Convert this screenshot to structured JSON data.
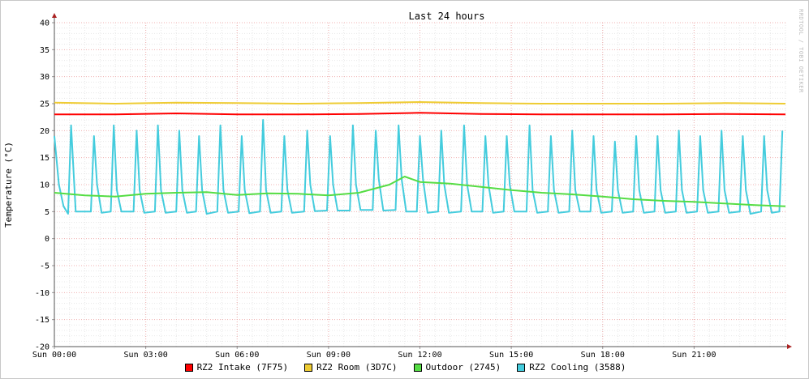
{
  "chart_data": {
    "type": "line",
    "title": "Last 24 hours",
    "xlabel": "",
    "ylabel": "Temperature (°C)",
    "watermark": "RRDTOOL / TOBI OETIKER",
    "ylim": [
      -20,
      40
    ],
    "yticks": [
      40,
      35,
      30,
      25,
      20,
      15,
      10,
      5,
      0,
      -5,
      -10,
      -15,
      -20
    ],
    "xlim_hours": [
      0,
      24
    ],
    "xticks": [
      {
        "hour": 0,
        "label": "Sun 00:00"
      },
      {
        "hour": 3,
        "label": "Sun 03:00"
      },
      {
        "hour": 6,
        "label": "Sun 06:00"
      },
      {
        "hour": 9,
        "label": "Sun 09:00"
      },
      {
        "hour": 12,
        "label": "Sun 12:00"
      },
      {
        "hour": 15,
        "label": "Sun 15:00"
      },
      {
        "hour": 18,
        "label": "Sun 18:00"
      },
      {
        "hour": 21,
        "label": "Sun 21:00"
      }
    ],
    "grid": true,
    "legend_position": "bottom",
    "series": [
      {
        "name": "RZ2 Intake (7F75)",
        "color": "#ff0000",
        "x": [
          0,
          2,
          4,
          6,
          8,
          10,
          12,
          14,
          16,
          18,
          20,
          22,
          24
        ],
        "y": [
          23.0,
          23.0,
          23.2,
          23.0,
          23.0,
          23.1,
          23.3,
          23.1,
          23.0,
          23.0,
          23.0,
          23.1,
          23.0
        ]
      },
      {
        "name": "RZ2 Room (3D7C)",
        "color": "#eecc33",
        "x": [
          0,
          2,
          4,
          6,
          8,
          10,
          12,
          14,
          16,
          18,
          20,
          22,
          24
        ],
        "y": [
          25.2,
          25.0,
          25.2,
          25.1,
          25.0,
          25.1,
          25.3,
          25.1,
          25.0,
          25.0,
          25.0,
          25.1,
          25.0
        ]
      },
      {
        "name": "Outdoor (2745)",
        "color": "#55dd44",
        "x": [
          0,
          1,
          2,
          3,
          4,
          5,
          6,
          7,
          8,
          9,
          10,
          11,
          11.5,
          12,
          13,
          14,
          15,
          16,
          17,
          18,
          19,
          20,
          21,
          22,
          23,
          24
        ],
        "y": [
          8.5,
          8.0,
          7.8,
          8.3,
          8.5,
          8.6,
          8.1,
          8.4,
          8.3,
          8.0,
          8.5,
          10.0,
          11.5,
          10.5,
          10.2,
          9.6,
          9.0,
          8.5,
          8.2,
          7.8,
          7.3,
          7.0,
          6.8,
          6.5,
          6.2,
          6.0
        ]
      },
      {
        "name": "RZ2 Cooling (3588)",
        "color": "#44ccdd",
        "x": [
          0,
          0.15,
          0.3,
          0.45,
          0.55,
          0.7,
          1.2,
          1.3,
          1.4,
          1.55,
          1.85,
          1.95,
          2.05,
          2.2,
          2.6,
          2.7,
          2.8,
          2.95,
          3.3,
          3.4,
          3.5,
          3.65,
          4.0,
          4.1,
          4.2,
          4.35,
          4.65,
          4.75,
          4.85,
          5.0,
          5.35,
          5.45,
          5.55,
          5.7,
          6.05,
          6.15,
          6.25,
          6.4,
          6.75,
          6.85,
          6.95,
          7.1,
          7.45,
          7.55,
          7.65,
          7.8,
          8.2,
          8.3,
          8.4,
          8.55,
          8.95,
          9.05,
          9.15,
          9.3,
          9.7,
          9.8,
          9.9,
          10.05,
          10.45,
          10.55,
          10.65,
          10.8,
          11.2,
          11.3,
          11.4,
          11.55,
          11.9,
          12.0,
          12.1,
          12.25,
          12.6,
          12.7,
          12.8,
          12.95,
          13.35,
          13.45,
          13.55,
          13.7,
          14.05,
          14.15,
          14.25,
          14.4,
          14.75,
          14.85,
          14.95,
          15.1,
          15.5,
          15.6,
          15.7,
          15.85,
          16.2,
          16.3,
          16.4,
          16.55,
          16.9,
          17.0,
          17.1,
          17.25,
          17.6,
          17.7,
          17.8,
          17.95,
          18.3,
          18.4,
          18.5,
          18.65,
          19.0,
          19.1,
          19.2,
          19.35,
          19.7,
          19.8,
          19.9,
          20.05,
          20.4,
          20.5,
          20.6,
          20.75,
          21.1,
          21.2,
          21.3,
          21.45,
          21.8,
          21.9,
          22.0,
          22.15,
          22.5,
          22.6,
          22.7,
          22.85,
          23.2,
          23.3,
          23.4,
          23.55,
          23.8,
          23.9
        ],
        "y": [
          19,
          10,
          6,
          4.6,
          21,
          5,
          5,
          19,
          10,
          4.8,
          5,
          21,
          9,
          5,
          5,
          20,
          9,
          4.8,
          5,
          21,
          9,
          4.8,
          5,
          20,
          9,
          4.8,
          5,
          19,
          9,
          4.6,
          5,
          21,
          9,
          4.8,
          5,
          19,
          9,
          4.7,
          5,
          22,
          9,
          4.8,
          5,
          19,
          9,
          4.8,
          5,
          20,
          10,
          5.1,
          5.2,
          19,
          10,
          5.2,
          5.2,
          21,
          10,
          5.3,
          5.3,
          20,
          11,
          5.2,
          5.3,
          21,
          11,
          5.0,
          5.0,
          19,
          11,
          4.8,
          5,
          20,
          10,
          4.8,
          5,
          21,
          10,
          5.0,
          5,
          19,
          10,
          4.8,
          5,
          19,
          10,
          5.0,
          5,
          21,
          9,
          4.8,
          5,
          19,
          9,
          4.8,
          5,
          20,
          9,
          5.0,
          5,
          19,
          9,
          4.8,
          5,
          18,
          9,
          4.8,
          5,
          19,
          9,
          4.8,
          5,
          19,
          9,
          4.8,
          5,
          20,
          9,
          4.8,
          5,
          19,
          9,
          4.8,
          5,
          20,
          9,
          4.8,
          5,
          19,
          9,
          4.6,
          5,
          19,
          9,
          4.8,
          5,
          20
        ]
      }
    ]
  }
}
